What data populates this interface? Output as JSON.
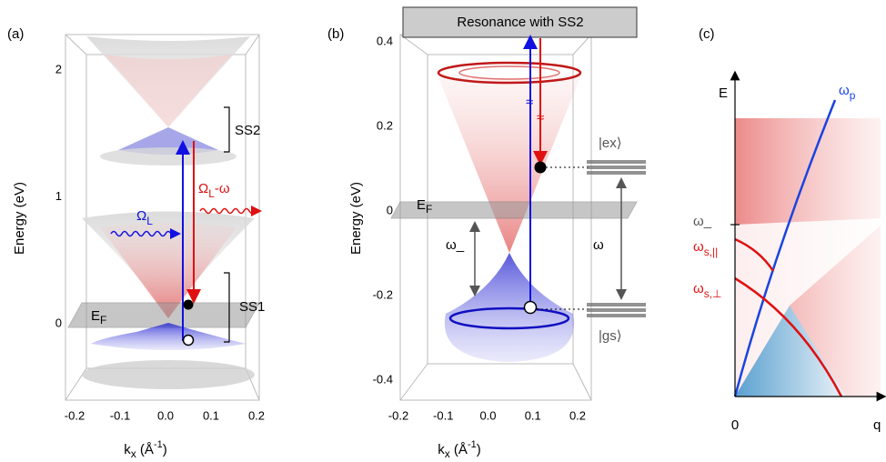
{
  "panels": {
    "a": {
      "label": "(a)",
      "y_label": "Energy (eV)",
      "x_label": {
        "main": "k",
        "sub": "x",
        "unit": " (Å",
        "sup": "-1",
        "end": ")"
      },
      "yticks": [
        "0",
        "1",
        "2"
      ],
      "xticks": [
        "-0.2",
        "-0.1",
        "0.0",
        "0.1",
        "0.2"
      ],
      "ss2": "SS2",
      "ss1": "SS1",
      "ef": {
        "main": "E",
        "sub": "F"
      },
      "omega_l": {
        "main": "Ω",
        "sub": "L"
      },
      "omega_l_minus": {
        "main": "Ω",
        "sub": "L",
        "rest": "-ω"
      }
    },
    "b": {
      "label": "(b)",
      "title": "Resonance with SS2",
      "y_label": "Energy (eV)",
      "x_label": {
        "main": "k",
        "sub": "x",
        "unit": " (Å",
        "sup": "-1",
        "end": ")"
      },
      "yticks": [
        "0.4",
        "0.2",
        "0",
        "-0.2",
        "-0.4"
      ],
      "xticks": [
        "-0.2",
        "-0.1",
        "0.0",
        "0.1",
        "0.2"
      ],
      "ef": {
        "main": "E",
        "sub": "F"
      },
      "omega_minus": "ω_",
      "omega": "ω",
      "ex": "|ex⟩",
      "gs": "|gs⟩",
      "approx": "≈"
    },
    "c": {
      "label": "(c)",
      "e_axis": "E",
      "q_axis": "q",
      "origin": "0",
      "omega_p": {
        "main": "ω",
        "sub": "p"
      },
      "omega_minus": "ω_",
      "omega_s_par": {
        "main": "ω",
        "sub": "s,||"
      },
      "omega_s_perp": {
        "main": "ω",
        "sub": "s,⊥"
      }
    }
  }
}
